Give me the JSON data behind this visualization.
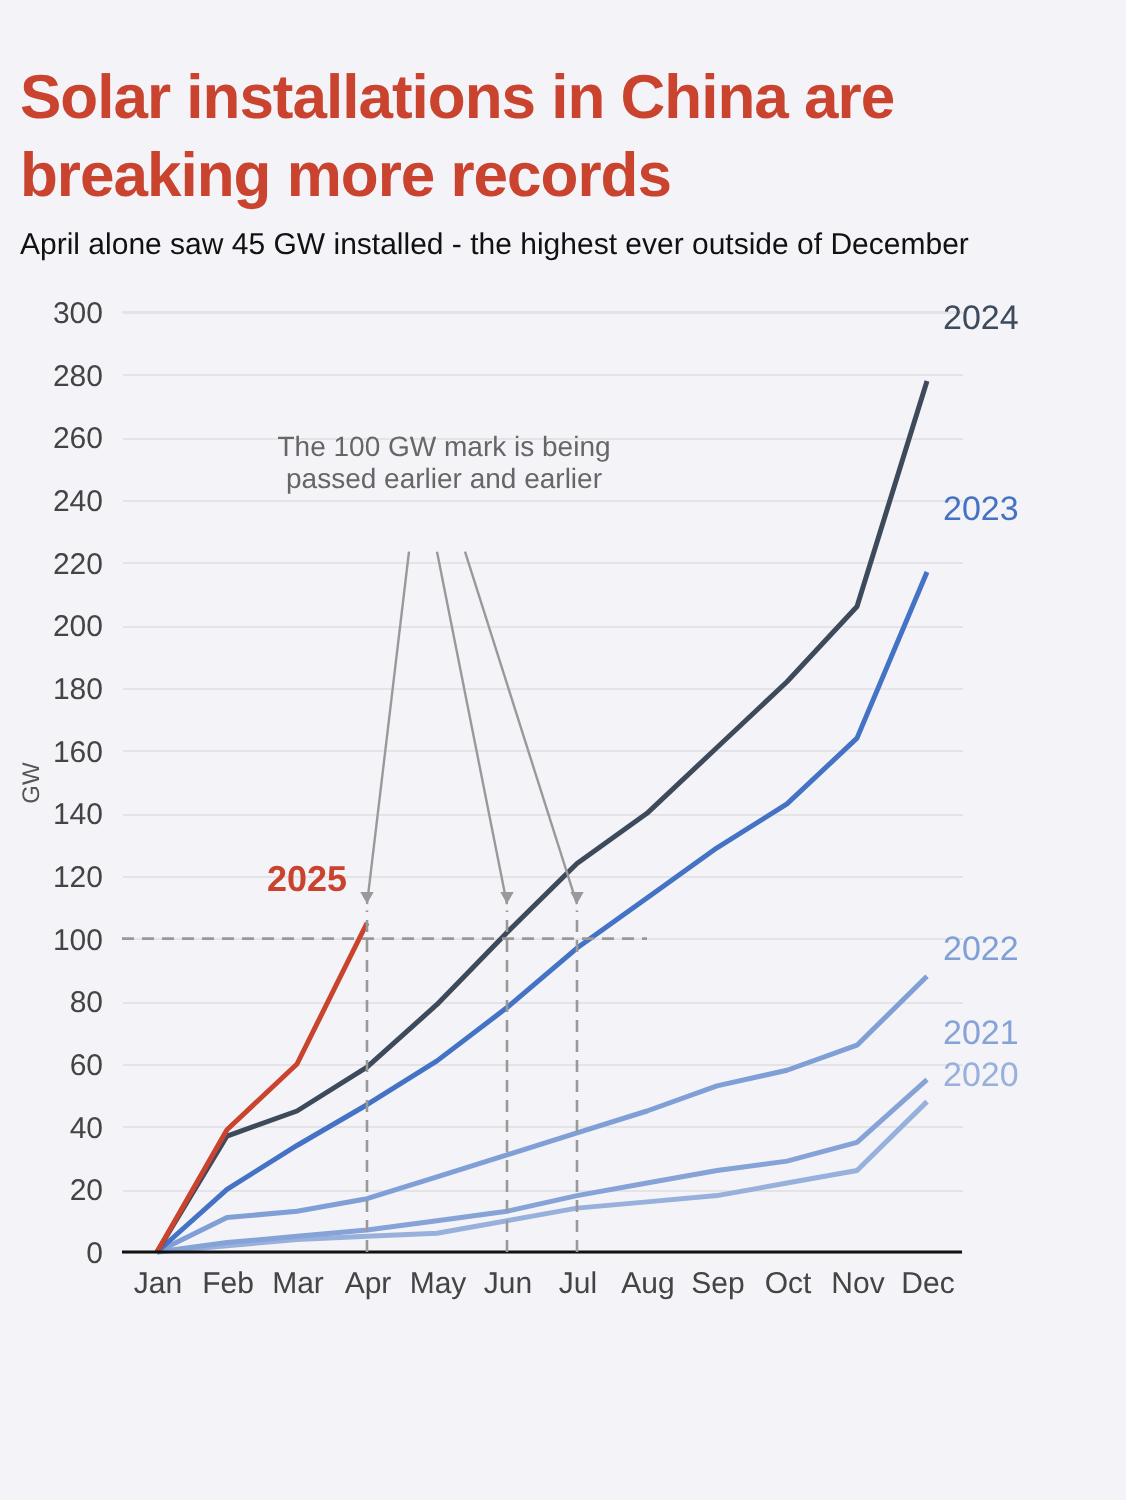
{
  "chart_data": {
    "type": "line",
    "title": "Solar installations in China are breaking more records",
    "subtitle": "April alone saw 45 GW installed - the highest ever outside of December",
    "ylabel": "GW",
    "categories": [
      "Jan",
      "Feb",
      "Mar",
      "Apr",
      "May",
      "Jun",
      "Jul",
      "Aug",
      "Sep",
      "Oct",
      "Nov",
      "Dec"
    ],
    "series": [
      {
        "name": "2020",
        "color": "#98b0dc",
        "values": [
          0,
          2,
          4,
          5,
          6,
          10,
          14,
          16,
          18,
          22,
          26,
          48
        ]
      },
      {
        "name": "2021",
        "color": "#86a3d8",
        "values": [
          0,
          3,
          5,
          7,
          10,
          13,
          18,
          22,
          26,
          29,
          35,
          55
        ]
      },
      {
        "name": "2022",
        "color": "#7f9fd6",
        "values": [
          0,
          11,
          13,
          17,
          24,
          31,
          38,
          45,
          53,
          58,
          66,
          88
        ]
      },
      {
        "name": "2023",
        "color": "#4472c4",
        "values": [
          0,
          20,
          34,
          47,
          61,
          78,
          97,
          113,
          129,
          143,
          164,
          217
        ]
      },
      {
        "name": "2024",
        "color": "#3d4a5c",
        "values": [
          0,
          37,
          45,
          59,
          79,
          102,
          124,
          140,
          161,
          182,
          206,
          278
        ]
      },
      {
        "name": "2025",
        "color": "#c9432f",
        "values": [
          0,
          39,
          60,
          105,
          null,
          null,
          null,
          null,
          null,
          null,
          null,
          null
        ]
      }
    ],
    "ylim": [
      0,
      300
    ],
    "yticks": [
      0,
      20,
      40,
      60,
      80,
      100,
      120,
      140,
      160,
      180,
      200,
      220,
      240,
      260,
      280,
      300
    ],
    "grid": "y",
    "legend": false,
    "marker": "none",
    "line_style": "solid",
    "ref_lines": [
      {
        "axis": "y",
        "value": 100,
        "color": "#999999",
        "line_style": "dashed"
      },
      {
        "axis": "x",
        "value": "Apr",
        "color": "#999999",
        "line_style": "dashed"
      },
      {
        "axis": "x",
        "value": "Jun",
        "color": "#999999",
        "line_style": "dashed"
      },
      {
        "axis": "x",
        "value": "Jul",
        "color": "#999999",
        "line_style": "dashed"
      }
    ],
    "annotations": [
      "The 100 GW mark is being passed earlier and earlier"
    ]
  }
}
